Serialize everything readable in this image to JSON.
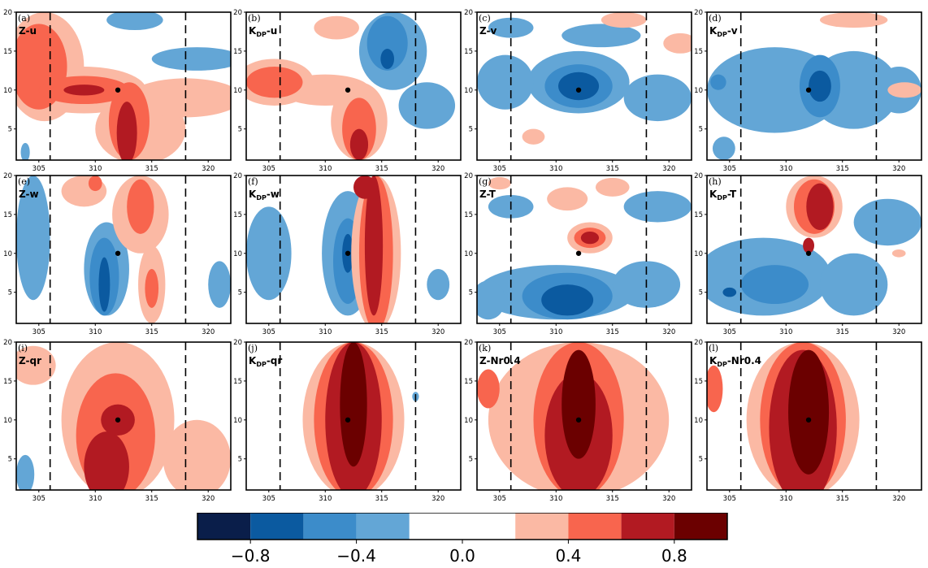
{
  "figure": {
    "panels": [
      {
        "letter": "(a)",
        "label": "Z-u",
        "row": 0,
        "col": 0
      },
      {
        "letter": "(b)",
        "label": "KDP-u",
        "row": 0,
        "col": 1
      },
      {
        "letter": "(c)",
        "label": "Z-v",
        "row": 0,
        "col": 2
      },
      {
        "letter": "(d)",
        "label": "KDP-v",
        "row": 0,
        "col": 3
      },
      {
        "letter": "(e)",
        "label": "Z-w",
        "row": 1,
        "col": 0
      },
      {
        "letter": "(f)",
        "label": "KDP-w",
        "row": 1,
        "col": 1
      },
      {
        "letter": "(g)",
        "label": "Z-T",
        "row": 1,
        "col": 2
      },
      {
        "letter": "(h)",
        "label": "KDP-T",
        "row": 1,
        "col": 3
      },
      {
        "letter": "(i)",
        "label": "Z-qr",
        "row": 2,
        "col": 0
      },
      {
        "letter": "(j)",
        "label": "KDP-qr",
        "row": 2,
        "col": 1
      },
      {
        "letter": "(k)",
        "label": "Z-Nr0.4",
        "row": 2,
        "col": 2
      },
      {
        "letter": "(l)",
        "label": "KDP-Nr0.4",
        "row": 2,
        "col": 3
      }
    ]
  },
  "chart_data": {
    "type": "heatmap",
    "x_ticks": [
      "305",
      "310",
      "315",
      "320"
    ],
    "y_ticks": [
      "5",
      "10",
      "15",
      "20"
    ],
    "xlim": [
      303,
      322
    ],
    "ylim": [
      1,
      20
    ],
    "reference_lines_x": [
      306,
      318
    ],
    "reference_point": {
      "x": 312,
      "y": 10
    },
    "colorbar": {
      "levels": [
        -1.0,
        -0.8,
        -0.6,
        -0.4,
        -0.2,
        0.2,
        0.4,
        0.6,
        0.8,
        1.0
      ],
      "colors": [
        "#0a1e4a",
        "#0b5aa0",
        "#3c8cca",
        "#63a6d6",
        "#ffffff",
        "#fbb9a4",
        "#f8654e",
        "#b21a22",
        "#6b0000"
      ],
      "tick_values": [
        -0.8,
        -0.4,
        0.0,
        0.4,
        0.8
      ],
      "tick_labels": [
        "−0.8",
        "−0.4",
        "0.0",
        "0.4",
        "0.8"
      ]
    },
    "panels": [
      {
        "id": "a",
        "blobs": [
          {
            "x": 305.5,
            "y": 13,
            "rx": 3.5,
            "ry": 7,
            "c": "#fbb9a4"
          },
          {
            "x": 309,
            "y": 10,
            "rx": 5.5,
            "ry": 3,
            "c": "#fbb9a4"
          },
          {
            "x": 314,
            "y": 5,
            "rx": 4,
            "ry": 4.5,
            "c": "#fbb9a4"
          },
          {
            "x": 318,
            "y": 9,
            "rx": 5,
            "ry": 2.5,
            "c": "#fbb9a4"
          },
          {
            "x": 305,
            "y": 13,
            "rx": 2.5,
            "ry": 5.5,
            "c": "#f8654e"
          },
          {
            "x": 309,
            "y": 10,
            "rx": 4,
            "ry": 1.8,
            "c": "#f8654e"
          },
          {
            "x": 313,
            "y": 6,
            "rx": 1.8,
            "ry": 5,
            "c": "#f8654e"
          },
          {
            "x": 309,
            "y": 10,
            "rx": 1.8,
            "ry": 0.7,
            "c": "#b21a22"
          },
          {
            "x": 312.8,
            "y": 4.5,
            "rx": 0.9,
            "ry": 4,
            "c": "#b21a22"
          },
          {
            "x": 313.5,
            "y": 19,
            "rx": 2.5,
            "ry": 1.3,
            "c": "#63a6d6"
          },
          {
            "x": 319,
            "y": 14,
            "rx": 4,
            "ry": 1.5,
            "c": "#63a6d6"
          },
          {
            "x": 303.8,
            "y": 2,
            "rx": 0.4,
            "ry": 1.2,
            "c": "#63a6d6"
          }
        ]
      },
      {
        "id": "b",
        "blobs": [
          {
            "x": 305.5,
            "y": 11,
            "rx": 3.5,
            "ry": 3,
            "c": "#fbb9a4"
          },
          {
            "x": 310,
            "y": 10,
            "rx": 4,
            "ry": 2,
            "c": "#fbb9a4"
          },
          {
            "x": 313,
            "y": 6,
            "rx": 2.5,
            "ry": 5,
            "c": "#fbb9a4"
          },
          {
            "x": 311,
            "y": 18,
            "rx": 2,
            "ry": 1.5,
            "c": "#fbb9a4"
          },
          {
            "x": 305.5,
            "y": 11,
            "rx": 2.5,
            "ry": 2,
            "c": "#f8654e"
          },
          {
            "x": 313,
            "y": 5,
            "rx": 1.5,
            "ry": 4,
            "c": "#f8654e"
          },
          {
            "x": 313,
            "y": 3,
            "rx": 0.8,
            "ry": 2,
            "c": "#b21a22"
          },
          {
            "x": 316,
            "y": 15,
            "rx": 3,
            "ry": 5,
            "c": "#63a6d6"
          },
          {
            "x": 319,
            "y": 8,
            "rx": 2.5,
            "ry": 3,
            "c": "#63a6d6"
          },
          {
            "x": 315.5,
            "y": 16,
            "rx": 1.8,
            "ry": 3.5,
            "c": "#3c8cca"
          },
          {
            "x": 315.5,
            "y": 14,
            "rx": 0.6,
            "ry": 1.3,
            "c": "#0b5aa0"
          }
        ]
      },
      {
        "id": "c",
        "blobs": [
          {
            "x": 312,
            "y": 11,
            "rx": 4.5,
            "ry": 4,
            "c": "#63a6d6"
          },
          {
            "x": 305.5,
            "y": 11,
            "rx": 2.5,
            "ry": 3.5,
            "c": "#63a6d6"
          },
          {
            "x": 314,
            "y": 17,
            "rx": 3.5,
            "ry": 1.5,
            "c": "#63a6d6"
          },
          {
            "x": 319,
            "y": 9,
            "rx": 3,
            "ry": 3,
            "c": "#63a6d6"
          },
          {
            "x": 306,
            "y": 18,
            "rx": 2,
            "ry": 1.3,
            "c": "#63a6d6"
          },
          {
            "x": 312,
            "y": 10.5,
            "rx": 3,
            "ry": 2.8,
            "c": "#3c8cca"
          },
          {
            "x": 312,
            "y": 10.5,
            "rx": 1.8,
            "ry": 1.8,
            "c": "#0b5aa0"
          },
          {
            "x": 316,
            "y": 19,
            "rx": 2,
            "ry": 1,
            "c": "#fbb9a4"
          },
          {
            "x": 321,
            "y": 16,
            "rx": 1.5,
            "ry": 1.3,
            "c": "#fbb9a4"
          },
          {
            "x": 308,
            "y": 4,
            "rx": 1,
            "ry": 1,
            "c": "#fbb9a4"
          }
        ]
      },
      {
        "id": "d",
        "blobs": [
          {
            "x": 309,
            "y": 10,
            "rx": 6,
            "ry": 5.5,
            "c": "#63a6d6"
          },
          {
            "x": 316,
            "y": 10,
            "rx": 4,
            "ry": 5,
            "c": "#63a6d6"
          },
          {
            "x": 320,
            "y": 10,
            "rx": 2,
            "ry": 3,
            "c": "#63a6d6"
          },
          {
            "x": 304.5,
            "y": 2.5,
            "rx": 1,
            "ry": 1.5,
            "c": "#63a6d6"
          },
          {
            "x": 313,
            "y": 10.5,
            "rx": 1.8,
            "ry": 4,
            "c": "#3c8cca"
          },
          {
            "x": 304,
            "y": 11,
            "rx": 0.7,
            "ry": 1,
            "c": "#3c8cca"
          },
          {
            "x": 313,
            "y": 10.5,
            "rx": 1,
            "ry": 2,
            "c": "#0b5aa0"
          },
          {
            "x": 316,
            "y": 19,
            "rx": 3,
            "ry": 1,
            "c": "#fbb9a4"
          },
          {
            "x": 320.5,
            "y": 10,
            "rx": 1.5,
            "ry": 1,
            "c": "#fbb9a4"
          }
        ]
      },
      {
        "id": "e",
        "blobs": [
          {
            "x": 304.5,
            "y": 12,
            "rx": 1.5,
            "ry": 8,
            "c": "#63a6d6"
          },
          {
            "x": 311,
            "y": 8,
            "rx": 2,
            "ry": 6,
            "c": "#63a6d6"
          },
          {
            "x": 321,
            "y": 6,
            "rx": 1,
            "ry": 3,
            "c": "#63a6d6"
          },
          {
            "x": 310.8,
            "y": 7,
            "rx": 1.3,
            "ry": 5,
            "c": "#3c8cca"
          },
          {
            "x": 310.8,
            "y": 6,
            "rx": 0.5,
            "ry": 3.5,
            "c": "#0b5aa0"
          },
          {
            "x": 314,
            "y": 15,
            "rx": 2.5,
            "ry": 5,
            "c": "#fbb9a4"
          },
          {
            "x": 309,
            "y": 18,
            "rx": 2,
            "ry": 2,
            "c": "#fbb9a4"
          },
          {
            "x": 315,
            "y": 6,
            "rx": 1.2,
            "ry": 5,
            "c": "#fbb9a4"
          },
          {
            "x": 314,
            "y": 16,
            "rx": 1.2,
            "ry": 3.5,
            "c": "#f8654e"
          },
          {
            "x": 315,
            "y": 5.5,
            "rx": 0.6,
            "ry": 2.5,
            "c": "#f8654e"
          },
          {
            "x": 310,
            "y": 19,
            "rx": 0.6,
            "ry": 1,
            "c": "#f8654e"
          }
        ]
      },
      {
        "id": "f",
        "blobs": [
          {
            "x": 312,
            "y": 10,
            "rx": 2.3,
            "ry": 8,
            "c": "#63a6d6"
          },
          {
            "x": 305,
            "y": 10,
            "rx": 2,
            "ry": 6,
            "c": "#63a6d6"
          },
          {
            "x": 320,
            "y": 6,
            "rx": 1,
            "ry": 2,
            "c": "#63a6d6"
          },
          {
            "x": 312,
            "y": 9,
            "rx": 1.3,
            "ry": 5.5,
            "c": "#3c8cca"
          },
          {
            "x": 312,
            "y": 10,
            "rx": 0.5,
            "ry": 2.5,
            "c": "#0b5aa0"
          },
          {
            "x": 314.5,
            "y": 10,
            "rx": 2.2,
            "ry": 10,
            "c": "#fbb9a4"
          },
          {
            "x": 314.5,
            "y": 10,
            "rx": 1.5,
            "ry": 10,
            "c": "#f8654e"
          },
          {
            "x": 314.3,
            "y": 11,
            "rx": 0.8,
            "ry": 9,
            "c": "#b21a22"
          },
          {
            "x": 313.5,
            "y": 18.5,
            "rx": 1,
            "ry": 1.5,
            "c": "#b21a22"
          }
        ]
      },
      {
        "id": "g",
        "blobs": [
          {
            "x": 310,
            "y": 5,
            "rx": 7,
            "ry": 3.5,
            "c": "#63a6d6"
          },
          {
            "x": 318,
            "y": 6,
            "rx": 3,
            "ry": 3,
            "c": "#63a6d6"
          },
          {
            "x": 304,
            "y": 4,
            "rx": 1.5,
            "ry": 2.5,
            "c": "#63a6d6"
          },
          {
            "x": 319,
            "y": 16,
            "rx": 3,
            "ry": 2,
            "c": "#63a6d6"
          },
          {
            "x": 306,
            "y": 16,
            "rx": 2,
            "ry": 1.5,
            "c": "#63a6d6"
          },
          {
            "x": 311,
            "y": 4.5,
            "rx": 4,
            "ry": 3,
            "c": "#3c8cca"
          },
          {
            "x": 311,
            "y": 4,
            "rx": 2.3,
            "ry": 2,
            "c": "#0b5aa0"
          },
          {
            "x": 313,
            "y": 12,
            "rx": 2,
            "ry": 2,
            "c": "#fbb9a4"
          },
          {
            "x": 311,
            "y": 17,
            "rx": 1.8,
            "ry": 1.5,
            "c": "#fbb9a4"
          },
          {
            "x": 315,
            "y": 18.5,
            "rx": 1.5,
            "ry": 1.2,
            "c": "#fbb9a4"
          },
          {
            "x": 313,
            "y": 12,
            "rx": 1.4,
            "ry": 1.3,
            "c": "#f8654e"
          },
          {
            "x": 313,
            "y": 12,
            "rx": 0.8,
            "ry": 0.8,
            "c": "#b21a22"
          },
          {
            "x": 305,
            "y": 19,
            "rx": 1,
            "ry": 0.8,
            "c": "#fbb9a4"
          }
        ]
      },
      {
        "id": "h",
        "blobs": [
          {
            "x": 308,
            "y": 7,
            "rx": 6,
            "ry": 5,
            "c": "#63a6d6"
          },
          {
            "x": 316,
            "y": 6,
            "rx": 3,
            "ry": 4,
            "c": "#63a6d6"
          },
          {
            "x": 319,
            "y": 14,
            "rx": 3,
            "ry": 3,
            "c": "#63a6d6"
          },
          {
            "x": 309,
            "y": 6,
            "rx": 3,
            "ry": 2.5,
            "c": "#3c8cca"
          },
          {
            "x": 305,
            "y": 5,
            "rx": 0.6,
            "ry": 0.6,
            "c": "#0b5aa0"
          },
          {
            "x": 312.5,
            "y": 16,
            "rx": 2.5,
            "ry": 4,
            "c": "#fbb9a4"
          },
          {
            "x": 312.5,
            "y": 16,
            "rx": 1.8,
            "ry": 3.5,
            "c": "#f8654e"
          },
          {
            "x": 313,
            "y": 16,
            "rx": 1.2,
            "ry": 3,
            "c": "#b21a22"
          },
          {
            "x": 312,
            "y": 11,
            "rx": 0.5,
            "ry": 1,
            "c": "#b21a22"
          },
          {
            "x": 320,
            "y": 10,
            "rx": 0.6,
            "ry": 0.5,
            "c": "#fbb9a4"
          }
        ]
      },
      {
        "id": "i",
        "blobs": [
          {
            "x": 312,
            "y": 10,
            "rx": 5,
            "ry": 10,
            "c": "#fbb9a4"
          },
          {
            "x": 304.5,
            "y": 17,
            "rx": 2,
            "ry": 2.5,
            "c": "#fbb9a4"
          },
          {
            "x": 319,
            "y": 5,
            "rx": 3,
            "ry": 5,
            "c": "#fbb9a4"
          },
          {
            "x": 311.8,
            "y": 8,
            "rx": 3.5,
            "ry": 8,
            "c": "#f8654e"
          },
          {
            "x": 311,
            "y": 4,
            "rx": 2,
            "ry": 4.5,
            "c": "#b21a22"
          },
          {
            "x": 312,
            "y": 10,
            "rx": 1.5,
            "ry": 2,
            "c": "#b21a22"
          },
          {
            "x": 303.8,
            "y": 3,
            "rx": 0.8,
            "ry": 2.5,
            "c": "#63a6d6"
          }
        ]
      },
      {
        "id": "j",
        "blobs": [
          {
            "x": 312.5,
            "y": 10,
            "rx": 4.5,
            "ry": 10,
            "c": "#fbb9a4"
          },
          {
            "x": 312.5,
            "y": 10,
            "rx": 3.5,
            "ry": 10,
            "c": "#f8654e"
          },
          {
            "x": 312.5,
            "y": 10,
            "rx": 2.5,
            "ry": 10,
            "c": "#b21a22"
          },
          {
            "x": 312.5,
            "y": 12,
            "rx": 1.2,
            "ry": 8,
            "c": "#6b0000"
          },
          {
            "x": 318,
            "y": 13,
            "rx": 0.3,
            "ry": 0.6,
            "c": "#63a6d6"
          }
        ]
      },
      {
        "id": "k",
        "blobs": [
          {
            "x": 312,
            "y": 10,
            "rx": 8,
            "ry": 10,
            "c": "#fbb9a4"
          },
          {
            "x": 304,
            "y": 14,
            "rx": 1,
            "ry": 2.5,
            "c": "#f8654e"
          },
          {
            "x": 312,
            "y": 10,
            "rx": 4,
            "ry": 10,
            "c": "#f8654e"
          },
          {
            "x": 312,
            "y": 8,
            "rx": 3,
            "ry": 8,
            "c": "#b21a22"
          },
          {
            "x": 312,
            "y": 12,
            "rx": 1.5,
            "ry": 7,
            "c": "#6b0000"
          }
        ]
      },
      {
        "id": "l",
        "blobs": [
          {
            "x": 311.5,
            "y": 10,
            "rx": 5,
            "ry": 10,
            "c": "#fbb9a4"
          },
          {
            "x": 303.6,
            "y": 14,
            "rx": 0.8,
            "ry": 3,
            "c": "#f8654e"
          },
          {
            "x": 311.5,
            "y": 10,
            "rx": 3.8,
            "ry": 10,
            "c": "#f8654e"
          },
          {
            "x": 311.5,
            "y": 9,
            "rx": 3,
            "ry": 10,
            "c": "#b21a22"
          },
          {
            "x": 312,
            "y": 11,
            "rx": 1.8,
            "ry": 8,
            "c": "#6b0000"
          }
        ]
      }
    ]
  }
}
